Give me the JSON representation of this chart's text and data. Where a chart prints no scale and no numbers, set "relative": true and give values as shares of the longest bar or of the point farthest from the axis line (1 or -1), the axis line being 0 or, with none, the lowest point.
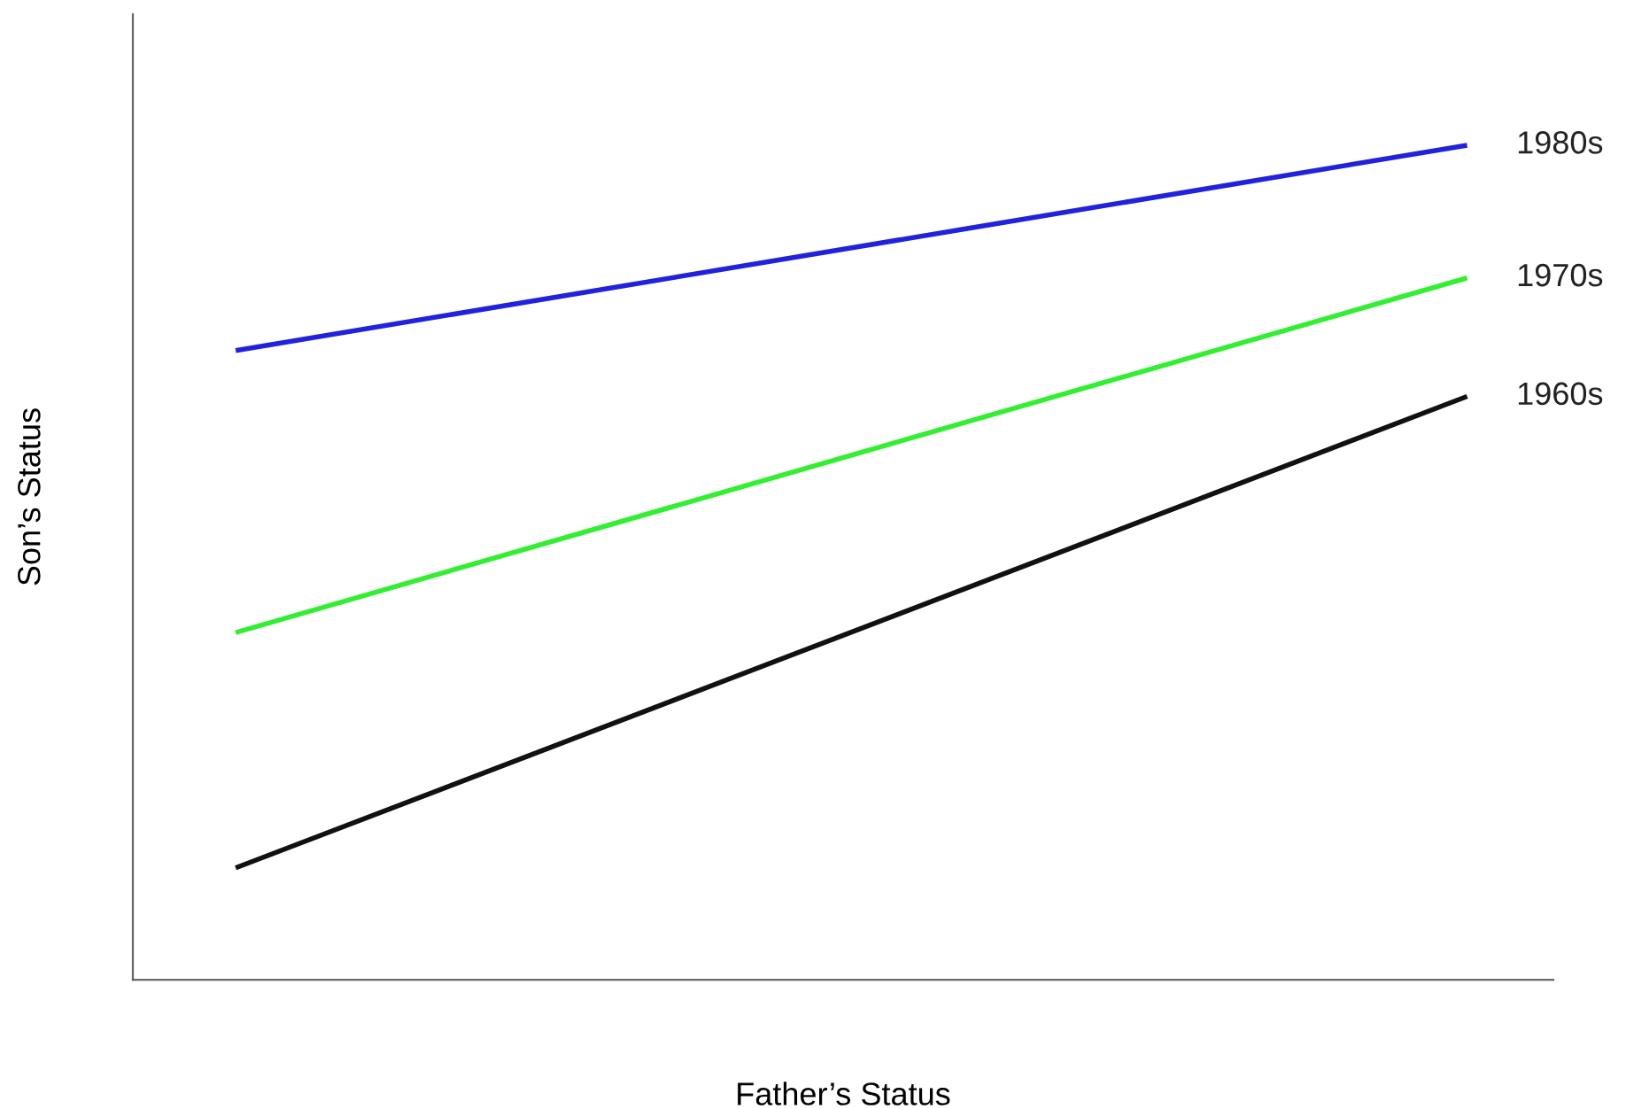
{
  "chart_data": {
    "type": "line",
    "relative": true,
    "xlabel": "Father’s Status",
    "ylabel": "Son’s Status",
    "categories": [
      null,
      null
    ],
    "series": [
      {
        "name": "1980s",
        "color": "#2222dd",
        "values": [
          0.754,
          1
        ]
      },
      {
        "name": "1970s",
        "color": "#33ee33",
        "values": [
          0.416,
          0.841
        ]
      },
      {
        "name": "1960s",
        "color": "#111111",
        "values": [
          0.134,
          0.699
        ]
      }
    ]
  }
}
